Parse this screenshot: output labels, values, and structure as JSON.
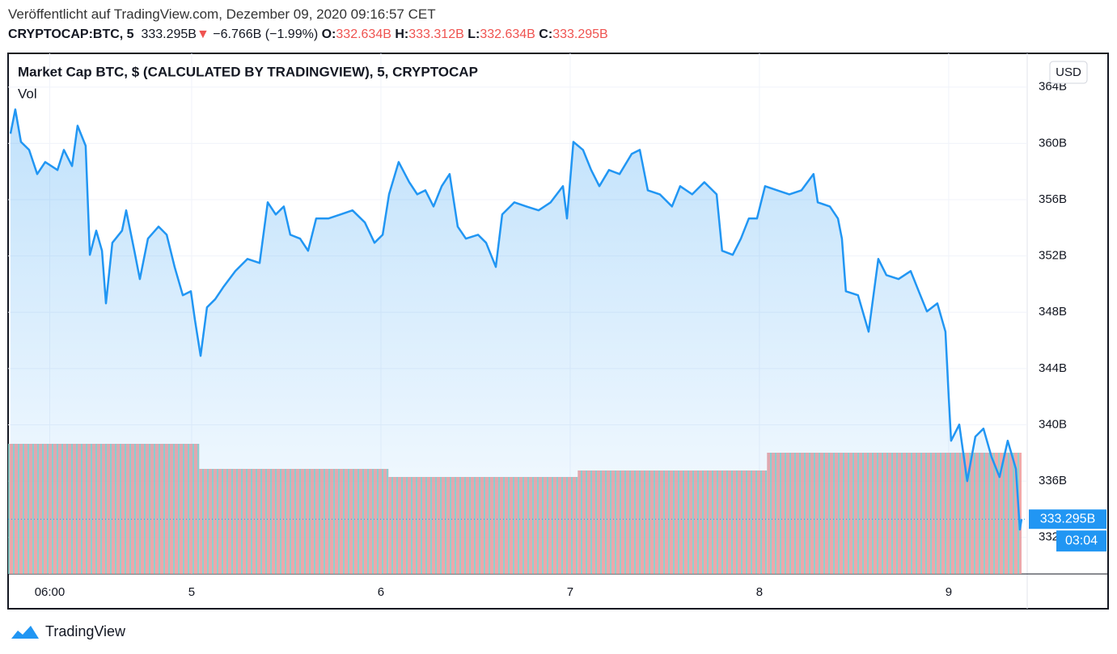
{
  "header": {
    "published": "Veröffentlicht auf TradingView.com, Dezember 09, 2020 09:16:57 CET",
    "symbol": "CRYPTOCAP:BTC, 5",
    "price": "333.295B",
    "arrow": "▼",
    "change": "−6.766B (−1.99%)",
    "o_label": "O:",
    "o": "332.634B",
    "h_label": "H:",
    "h": "333.312B",
    "l_label": "L:",
    "l": "332.634B",
    "c_label": "C:",
    "c": "333.295B"
  },
  "footer": {
    "brand": "TradingView"
  },
  "chart_data": {
    "type": "area",
    "title": "Market Cap BTC, $ (CALCULATED BY TRADINGVIEW), 5, CRYPTOCAP",
    "currency": "USD",
    "series": [
      {
        "name": "Market Cap BTC",
        "color": "#2196f3",
        "x": [
          4.043,
          4.068,
          4.098,
          4.141,
          4.184,
          4.226,
          4.291,
          4.325,
          4.368,
          4.397,
          4.44,
          4.462,
          4.496,
          4.526,
          4.547,
          4.581,
          4.632,
          4.654,
          4.697,
          4.726,
          4.769,
          4.825,
          4.868,
          4.91,
          4.953,
          4.996,
          5.017,
          5.047,
          5.081,
          5.124,
          5.167,
          5.231,
          5.295,
          5.359,
          5.402,
          5.444,
          5.487,
          5.521,
          5.573,
          5.615,
          5.658,
          5.722,
          5.786,
          5.85,
          5.915,
          5.966,
          6.009,
          6.043,
          6.094,
          6.15,
          6.192,
          6.235,
          6.278,
          6.321,
          6.363,
          6.406,
          6.449,
          6.513,
          6.556,
          6.607,
          6.641,
          6.705,
          6.769,
          6.833,
          6.897,
          6.962,
          6.983,
          7.017,
          7.068,
          7.111,
          7.154,
          7.205,
          7.261,
          7.325,
          7.368,
          7.41,
          7.474,
          7.538,
          7.581,
          7.645,
          7.709,
          7.774,
          7.803,
          7.859,
          7.902,
          7.944,
          7.987,
          8.03,
          8.094,
          8.158,
          8.222,
          8.286,
          8.308,
          8.372,
          8.415,
          8.436,
          8.457,
          8.521,
          8.577,
          8.628,
          8.671,
          8.735,
          8.799,
          8.842,
          8.885,
          8.94,
          8.983,
          9.0,
          9.013,
          9.056,
          9.098,
          9.141,
          9.184,
          9.226,
          9.269,
          9.312,
          9.355,
          9.376,
          9.385
        ],
        "values": [
          360.69,
          362.41,
          360.11,
          359.54,
          357.82,
          358.68,
          358.11,
          359.54,
          358.39,
          361.26,
          359.83,
          352.08,
          353.8,
          352.37,
          348.63,
          352.94,
          353.8,
          355.24,
          352.37,
          350.36,
          353.23,
          354.09,
          353.51,
          351.22,
          349.21,
          349.49,
          347.49,
          344.9,
          348.35,
          348.92,
          349.78,
          350.93,
          351.79,
          351.5,
          355.81,
          354.95,
          355.52,
          353.51,
          353.23,
          352.37,
          354.66,
          354.66,
          354.95,
          355.24,
          354.38,
          352.94,
          353.51,
          356.38,
          358.68,
          357.24,
          356.38,
          356.67,
          355.52,
          356.96,
          357.82,
          354.09,
          353.23,
          353.51,
          352.94,
          351.22,
          354.95,
          355.81,
          355.52,
          355.24,
          355.81,
          356.96,
          354.66,
          360.11,
          359.54,
          358.11,
          356.96,
          358.11,
          357.82,
          359.25,
          359.54,
          356.67,
          356.38,
          355.52,
          356.96,
          356.38,
          357.24,
          356.38,
          352.37,
          352.08,
          353.23,
          354.66,
          354.66,
          356.96,
          356.67,
          356.38,
          356.67,
          357.82,
          355.81,
          355.52,
          354.66,
          353.23,
          349.49,
          349.21,
          346.62,
          351.79,
          350.64,
          350.36,
          350.93,
          349.49,
          348.06,
          348.63,
          346.62,
          342.03,
          338.87,
          340.02,
          336.0,
          339.16,
          339.73,
          337.73,
          336.29,
          338.87,
          336.87,
          332.56,
          333.295
        ]
      }
    ],
    "volume": {
      "name": "Vol",
      "edges": [
        4.03,
        5.04,
        6.04,
        7.04,
        8.04,
        9.385
      ],
      "values": [
        161,
        130,
        120,
        128,
        150
      ],
      "ylim": [
        0,
        400
      ],
      "colors": [
        "#ef9a9a",
        "#80cbc4"
      ]
    },
    "last_price": {
      "value": 333.295,
      "label": "333.295B"
    },
    "countdown": "03:04",
    "xlim": [
      4.03,
      9.415
    ],
    "xticks": [
      {
        "value": 4.25,
        "label": "06:00"
      },
      5,
      6,
      7,
      8,
      9
    ],
    "ylim": [
      329.4,
      366.4
    ],
    "yticks": [
      {
        "value": 332,
        "label": "332B"
      },
      {
        "value": 336,
        "label": "336B"
      },
      {
        "value": 340,
        "label": "340B"
      },
      {
        "value": 344,
        "label": "344B"
      },
      {
        "value": 348,
        "label": "348B"
      },
      {
        "value": 352,
        "label": "352B"
      },
      {
        "value": 356,
        "label": "356B"
      },
      {
        "value": 360,
        "label": "360B"
      },
      {
        "value": 364,
        "label": "364B"
      }
    ],
    "grid": true
  }
}
